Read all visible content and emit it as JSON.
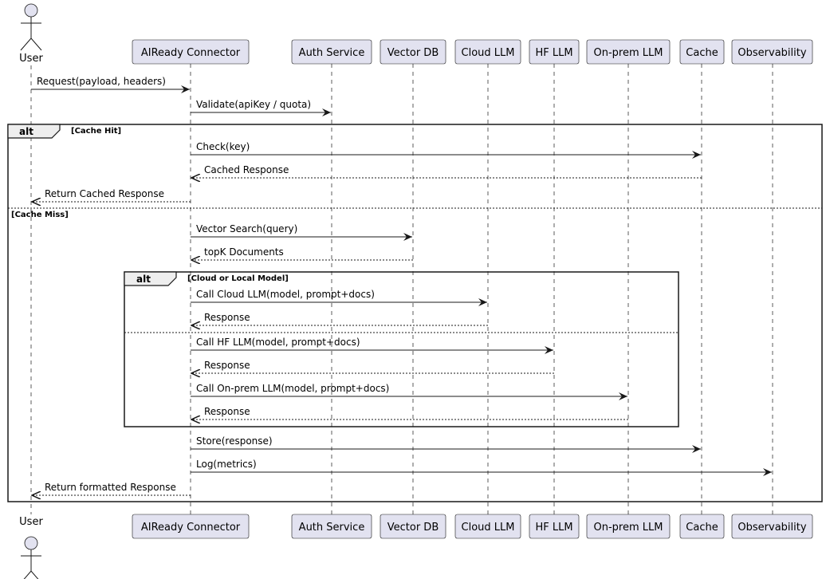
{
  "diagram": {
    "type": "sequence",
    "colors": {
      "participant_fill": "#e2e2f0",
      "participant_border": "#181818",
      "line": "#181818",
      "frame_header": "#eeeeee"
    },
    "participants": [
      {
        "name": "User",
        "kind": "actor"
      },
      {
        "name": "AIReady Connector",
        "kind": "participant"
      },
      {
        "name": "Auth Service",
        "kind": "participant"
      },
      {
        "name": "Vector DB",
        "kind": "participant"
      },
      {
        "name": "Cloud LLM",
        "kind": "participant"
      },
      {
        "name": "HF LLM",
        "kind": "participant"
      },
      {
        "name": "On-prem LLM",
        "kind": "participant"
      },
      {
        "name": "Cache",
        "kind": "participant"
      },
      {
        "name": "Observability",
        "kind": "participant"
      }
    ],
    "messages": [
      {
        "from": 0,
        "to": 1,
        "label": "Request(payload, headers)",
        "dashed": false
      },
      {
        "from": 1,
        "to": 2,
        "label": "Validate(apiKey / quota)",
        "dashed": false
      },
      {
        "from": 1,
        "to": 7,
        "label": "Check(key)",
        "dashed": false
      },
      {
        "from": 7,
        "to": 1,
        "label": "Cached Response",
        "dashed": true
      },
      {
        "from": 1,
        "to": 0,
        "label": "Return Cached Response",
        "dashed": true
      },
      {
        "from": 1,
        "to": 3,
        "label": "Vector Search(query)",
        "dashed": false
      },
      {
        "from": 3,
        "to": 1,
        "label": "topK Documents",
        "dashed": true
      },
      {
        "from": 1,
        "to": 4,
        "label": "Call Cloud LLM(model, prompt+docs)",
        "dashed": false
      },
      {
        "from": 4,
        "to": 1,
        "label": "Response",
        "dashed": true
      },
      {
        "from": 1,
        "to": 5,
        "label": "Call HF LLM(model, prompt+docs)",
        "dashed": false
      },
      {
        "from": 5,
        "to": 1,
        "label": "Response",
        "dashed": true
      },
      {
        "from": 1,
        "to": 6,
        "label": "Call On-prem LLM(model, prompt+docs)",
        "dashed": false
      },
      {
        "from": 6,
        "to": 1,
        "label": "Response",
        "dashed": true
      },
      {
        "from": 1,
        "to": 7,
        "label": "Store(response)",
        "dashed": false
      },
      {
        "from": 1,
        "to": 8,
        "label": "Log(metrics)",
        "dashed": false
      },
      {
        "from": 1,
        "to": 0,
        "label": "Return formatted Response",
        "dashed": true
      }
    ],
    "fragments": [
      {
        "keyword": "alt",
        "guards": [
          "[Cache Hit]",
          "[Cache Miss]"
        ]
      },
      {
        "keyword": "alt",
        "guards": [
          "[Cloud or Local Model]"
        ]
      }
    ]
  }
}
